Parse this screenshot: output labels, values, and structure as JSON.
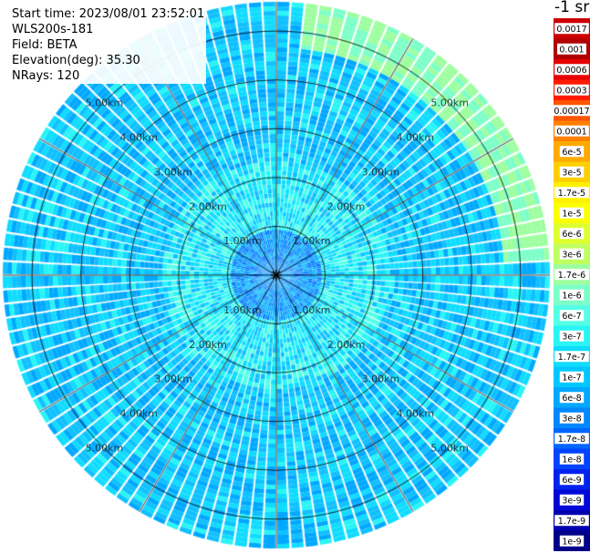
{
  "meta": {
    "start_time": "Start time: 2023/08/01 23:52:01",
    "instrument": "WLS200s-181",
    "field": "Field: BETA",
    "elevation": "Elevation(deg): 35.30",
    "nrays": "NRays: 120"
  },
  "colorbar": {
    "units": "-1 sr",
    "labels": [
      "0.0017",
      "0.001",
      "0.0006",
      "0.0003",
      "0.00017",
      "0.0001",
      "6e-5",
      "3e-5",
      "1.7e-5",
      "1e-5",
      "6e-6",
      "3e-6",
      "1.7e-6",
      "1e-6",
      "6e-7",
      "3e-7",
      "1.7e-7",
      "1e-7",
      "6e-8",
      "3e-8",
      "1.7e-8",
      "1e-8",
      "6e-9",
      "3e-9",
      "1.7e-9",
      "1e-9"
    ],
    "colors": [
      "#cc0000",
      "#b00000",
      "#e60000",
      "#ff1a00",
      "#ff5500",
      "#ff8000",
      "#ffaa00",
      "#ffd000",
      "#ffef00",
      "#fbff00",
      "#e0ff30",
      "#bfff60",
      "#9effa0",
      "#7dffc8",
      "#55ffe6",
      "#2af5f5",
      "#10dcff",
      "#00c8ff",
      "#00a8ff",
      "#0088ff",
      "#0066ff",
      "#0044ff",
      "#0022f0",
      "#0008d8",
      "#0000b0",
      "#000088"
    ]
  },
  "chart_data": {
    "type": "heatmap",
    "projection": "polar-ppi",
    "title": "",
    "range_rings_km": [
      1.0,
      2.0,
      3.0,
      4.0,
      5.0
    ],
    "ring_labels": [
      "1.00km",
      "2.00km",
      "3.00km",
      "4.00km",
      "5.00km"
    ],
    "max_range_km": 5.6,
    "nrays": 120,
    "radial_lines": 12,
    "dominant_value": "1e-7 to 3e-8",
    "near_field_value": "6e-8 to 1.7e-8",
    "mid_field_value": "1.7e-7 to 1e-7",
    "far_northeast_value": "1e-6 to 3e-6",
    "colormap": "jet",
    "value_scale": "log"
  }
}
